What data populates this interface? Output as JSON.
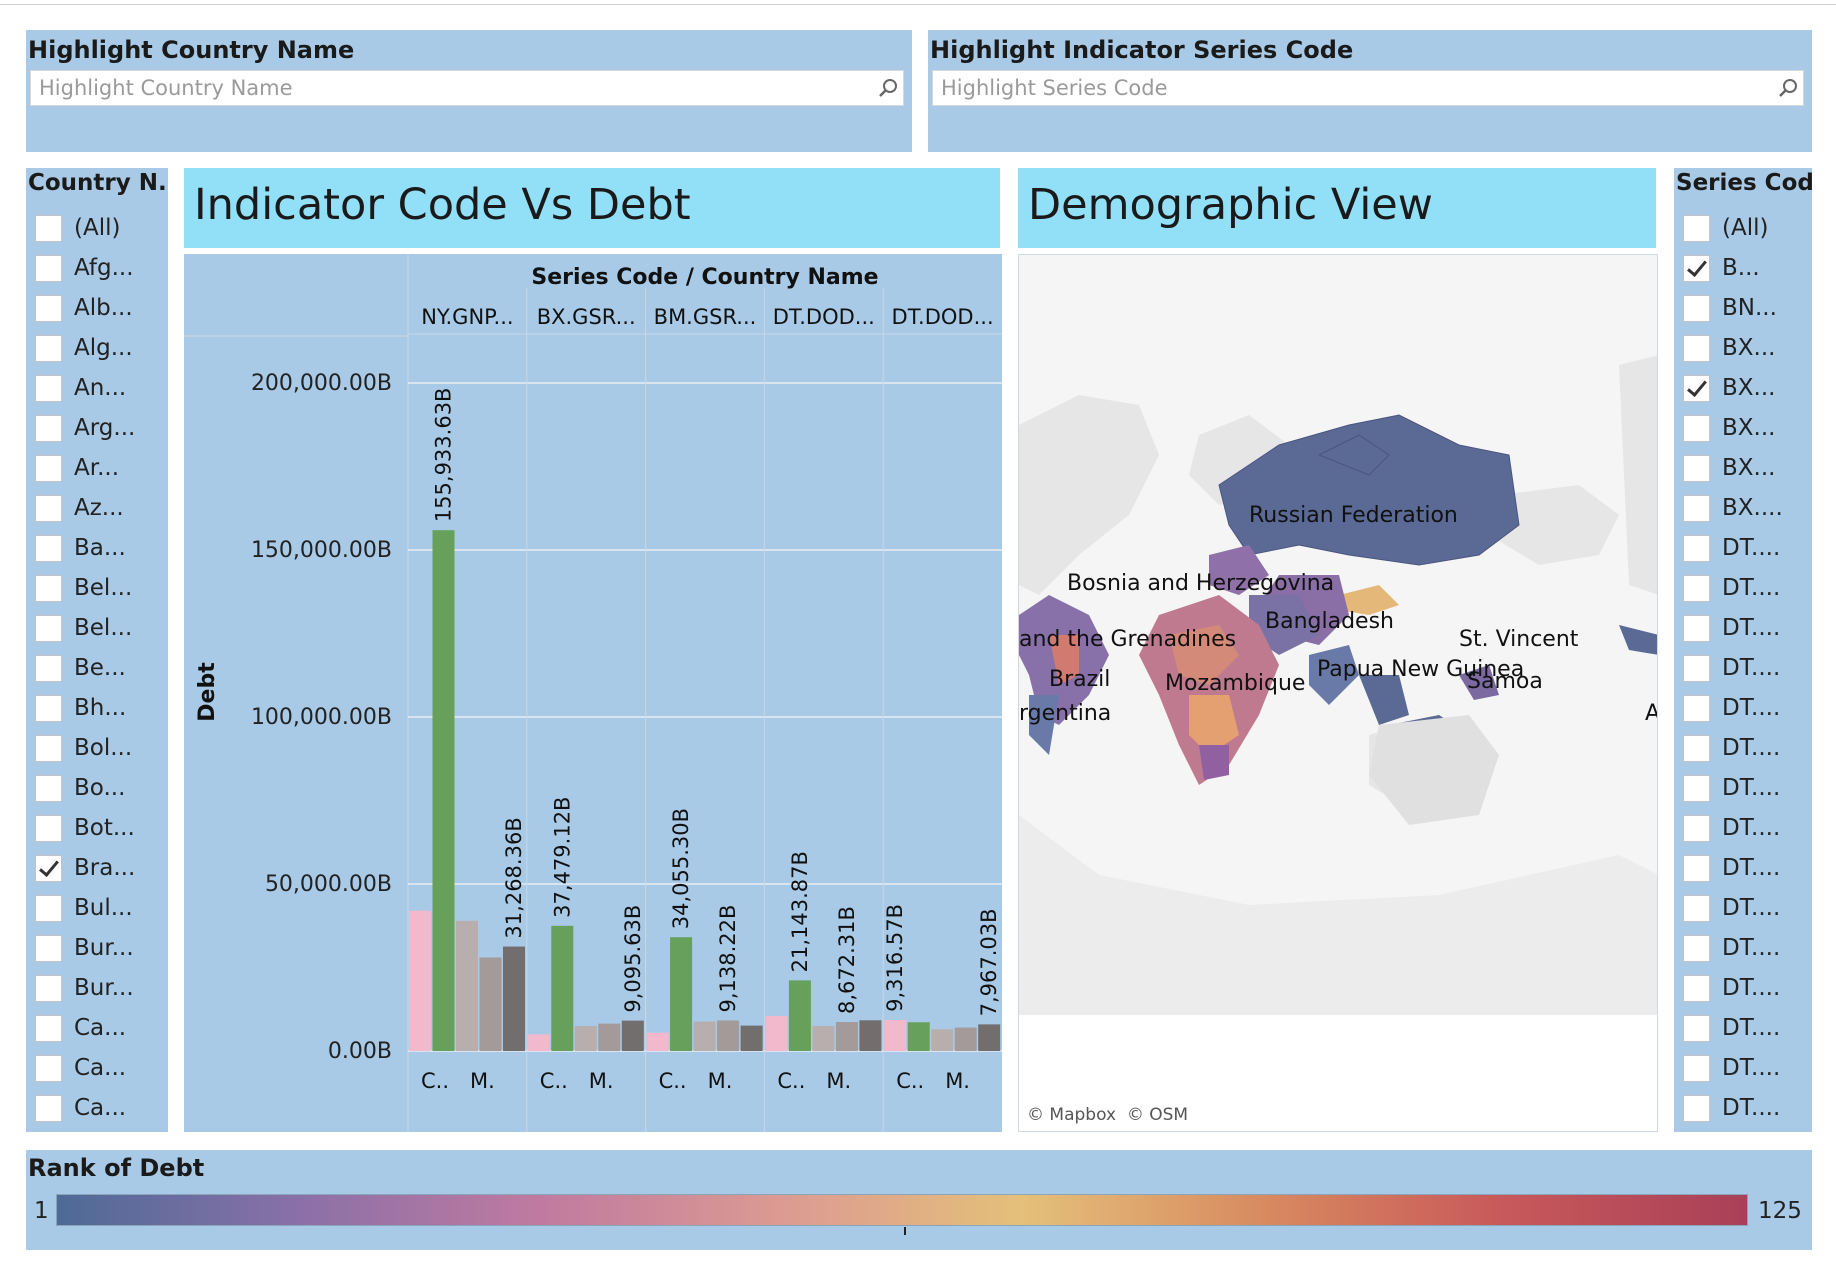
{
  "highlight_country": {
    "title": "Highlight Country Name",
    "placeholder": "Highlight Country Name"
  },
  "highlight_series": {
    "title": "Highlight Indicator Series Code",
    "placeholder": "Highlight Series Code"
  },
  "country_filter": {
    "title": "Country N...",
    "items": [
      {
        "label": "(All)",
        "checked": false
      },
      {
        "label": "Afg...",
        "checked": false
      },
      {
        "label": "Alb...",
        "checked": false
      },
      {
        "label": "Alg...",
        "checked": false
      },
      {
        "label": "An...",
        "checked": false
      },
      {
        "label": "Arg...",
        "checked": false
      },
      {
        "label": "Ar...",
        "checked": false
      },
      {
        "label": "Az...",
        "checked": false
      },
      {
        "label": "Ba...",
        "checked": false
      },
      {
        "label": "Bel...",
        "checked": false
      },
      {
        "label": "Bel...",
        "checked": false
      },
      {
        "label": "Be...",
        "checked": false
      },
      {
        "label": "Bh...",
        "checked": false
      },
      {
        "label": "Bol...",
        "checked": false
      },
      {
        "label": "Bo...",
        "checked": false
      },
      {
        "label": "Bot...",
        "checked": false
      },
      {
        "label": "Bra...",
        "checked": true
      },
      {
        "label": "Bul...",
        "checked": false
      },
      {
        "label": "Bur...",
        "checked": false
      },
      {
        "label": "Bur...",
        "checked": false
      },
      {
        "label": "Ca...",
        "checked": false
      },
      {
        "label": "Ca...",
        "checked": false
      },
      {
        "label": "Ca...",
        "checked": false
      }
    ]
  },
  "series_filter": {
    "title": "Series Code",
    "items": [
      {
        "label": "(All)",
        "checked": false
      },
      {
        "label": "B...",
        "checked": true
      },
      {
        "label": "BN...",
        "checked": false
      },
      {
        "label": "BX...",
        "checked": false
      },
      {
        "label": "BX...",
        "checked": true
      },
      {
        "label": "BX...",
        "checked": false
      },
      {
        "label": "BX...",
        "checked": false
      },
      {
        "label": "BX....",
        "checked": false
      },
      {
        "label": "DT....",
        "checked": false
      },
      {
        "label": "DT....",
        "checked": false
      },
      {
        "label": "DT....",
        "checked": false
      },
      {
        "label": "DT....",
        "checked": false
      },
      {
        "label": "DT....",
        "checked": false
      },
      {
        "label": "DT....",
        "checked": false
      },
      {
        "label": "DT....",
        "checked": false
      },
      {
        "label": "DT....",
        "checked": false
      },
      {
        "label": "DT....",
        "checked": false
      },
      {
        "label": "DT....",
        "checked": false
      },
      {
        "label": "DT....",
        "checked": false
      },
      {
        "label": "DT....",
        "checked": false
      },
      {
        "label": "DT....",
        "checked": false
      },
      {
        "label": "DT....",
        "checked": false
      },
      {
        "label": "DT....",
        "checked": false
      }
    ]
  },
  "bar_panel": {
    "title": "Indicator Code Vs Debt"
  },
  "map_panel": {
    "title": "Demographic View",
    "credits": [
      "© Mapbox",
      "© OSM"
    ],
    "labels": [
      "Russian Federation",
      "Bosnia and Herzegovina",
      "Bangladesh",
      "and the Grenadines",
      "St. Vincent",
      "Brazil",
      "Mozambique",
      "Papua New Guinea",
      "Samoa",
      "rgentina",
      "A"
    ]
  },
  "legend": {
    "title": "Rank of Debt",
    "min": "1",
    "max": "125",
    "range": [
      1,
      125
    ],
    "color_stops": [
      "#4e6a96",
      "#8a70a8",
      "#c07aa0",
      "#dc9a92",
      "#e4c07a",
      "#d88a60",
      "#c8585a",
      "#a84058"
    ]
  },
  "chart_data": {
    "type": "bar",
    "header_title": "Series Code / Country Name",
    "ylabel": "Debt",
    "ylim": [
      0,
      220000
    ],
    "y_ticks": [
      0,
      50000,
      100000,
      150000,
      200000
    ],
    "y_tick_labels": [
      "0.00B",
      "50,000.00B",
      "100,000.00B",
      "150,000.00B",
      "200,000.00B"
    ],
    "groups": [
      {
        "header": "NY.GNP...",
        "axis_labels": [
          "C..",
          "M."
        ],
        "bars": [
          {
            "value": 42000,
            "color": "#f2b8cc"
          },
          {
            "value": 155933.63,
            "color": "#66a05a",
            "label": "155,933.63B"
          },
          {
            "value": 39000,
            "color": "#b8aeae"
          },
          {
            "value": 28000,
            "color": "#a49a9a"
          },
          {
            "value": 31268.36,
            "color": "#736e6e",
            "label": "31,268.36B"
          }
        ]
      },
      {
        "header": "BX.GSR...",
        "axis_labels": [
          "C..",
          "M."
        ],
        "bars": [
          {
            "value": 5000,
            "color": "#f2b8cc"
          },
          {
            "value": 37479.12,
            "color": "#66a05a",
            "label": "37,479.12B"
          },
          {
            "value": 7500,
            "color": "#b8aeae"
          },
          {
            "value": 8200,
            "color": "#a49a9a"
          },
          {
            "value": 9095.63,
            "color": "#736e6e",
            "label": "9,095.63B"
          }
        ]
      },
      {
        "header": "BM.GSR...",
        "axis_labels": [
          "C..",
          "M."
        ],
        "bars": [
          {
            "value": 5500,
            "color": "#f2b8cc"
          },
          {
            "value": 34055.3,
            "color": "#66a05a",
            "label": "34,055.30B"
          },
          {
            "value": 8800,
            "color": "#b8aeae"
          },
          {
            "value": 9138.22,
            "color": "#a49a9a",
            "label": "9,138.22B"
          },
          {
            "value": 7600,
            "color": "#736e6e"
          }
        ]
      },
      {
        "header": "DT.DOD...",
        "axis_labels": [
          "C..",
          "M."
        ],
        "bars": [
          {
            "value": 10500,
            "color": "#f2b8cc"
          },
          {
            "value": 21143.87,
            "color": "#66a05a",
            "label": "21,143.87B"
          },
          {
            "value": 7500,
            "color": "#b8aeae"
          },
          {
            "value": 8672.31,
            "color": "#a49a9a",
            "label": "8,672.31B"
          },
          {
            "value": 9200,
            "color": "#736e6e"
          }
        ]
      },
      {
        "header": "DT.DOD...",
        "axis_labels": [
          "C..",
          "M."
        ],
        "bars": [
          {
            "value": 9316.57,
            "color": "#f2b8cc",
            "label": "9,316.57B"
          },
          {
            "value": 8600,
            "color": "#66a05a"
          },
          {
            "value": 6500,
            "color": "#b8aeae"
          },
          {
            "value": 7000,
            "color": "#a49a9a"
          },
          {
            "value": 7967.03,
            "color": "#736e6e",
            "label": "7,967.03B"
          }
        ]
      }
    ]
  }
}
